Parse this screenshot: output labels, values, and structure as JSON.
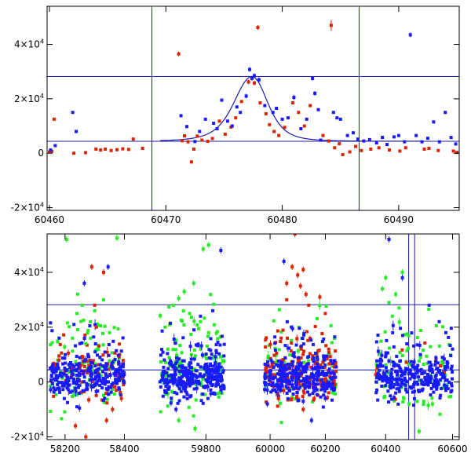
{
  "colors": {
    "blue": "#1a1aff",
    "red": "#dd2200",
    "green": "#22ee22",
    "line": "#1a1ab0",
    "frame": "#000000"
  },
  "chart_data": [
    {
      "type": "scatter",
      "title": "",
      "xlabel": "",
      "ylabel": "",
      "xlim": [
        60459.8,
        60495.2
      ],
      "ylim": [
        -21000,
        54000
      ],
      "x_ticks": [
        60460,
        60470,
        60480,
        60490
      ],
      "x_tick_labels": [
        "60460",
        "60470",
        "60480",
        "60490"
      ],
      "y_ticks": [
        -20000,
        0,
        20000,
        40000
      ],
      "y_tick_labels": [
        {
          "mant": "-2×10",
          "exp": "4"
        },
        {
          "mant": "0",
          "exp": ""
        },
        {
          "mant": "2×10",
          "exp": "4"
        },
        {
          "mant": "4×10",
          "exp": "4"
        }
      ],
      "hlines": [
        28200,
        4400
      ],
      "vlines": [
        60468.8,
        60486.6
      ],
      "model_curve": {
        "baseline": 4400,
        "peak": 28200,
        "t0": 60477.4,
        "tE_rise": 2.3,
        "tE_fall": 2.0
      },
      "series": [
        {
          "color": "red",
          "points": [
            [
              60460.0,
              500
            ],
            [
              60460.2,
              700
            ],
            [
              60460.4,
              12500
            ],
            [
              60462.1,
              0
            ],
            [
              60463.1,
              200
            ],
            [
              60464.0,
              1500
            ],
            [
              60464.4,
              1200
            ],
            [
              60464.8,
              1500
            ],
            [
              60465.3,
              1000
            ],
            [
              60465.8,
              1300
            ],
            [
              60466.3,
              1600
            ],
            [
              60466.8,
              1400
            ],
            [
              60467.2,
              5200
            ],
            [
              60468.0,
              1800
            ],
            [
              60471.1,
              36500
            ],
            [
              60471.4,
              4600
            ],
            [
              60471.6,
              6400
            ],
            [
              60471.9,
              4200
            ],
            [
              60472.2,
              -3200
            ],
            [
              60472.4,
              1500
            ],
            [
              60472.7,
              6300
            ],
            [
              60473.1,
              4800
            ],
            [
              60473.6,
              4400
            ],
            [
              60474.0,
              5400
            ],
            [
              60474.6,
              11800
            ],
            [
              60475.1,
              7000
            ],
            [
              60475.6,
              9600
            ],
            [
              60476.0,
              13000
            ],
            [
              60476.5,
              19000
            ],
            [
              60477.1,
              26200
            ],
            [
              60477.6,
              25800
            ],
            [
              60477.9,
              46200
            ],
            [
              60478.1,
              18500
            ],
            [
              60478.6,
              14500
            ],
            [
              60478.9,
              10500
            ],
            [
              60479.3,
              8000
            ],
            [
              60479.7,
              6500
            ],
            [
              60480.2,
              9500
            ],
            [
              60480.9,
              18500
            ],
            [
              60481.4,
              15000
            ],
            [
              60481.9,
              10000
            ],
            [
              60482.4,
              17500
            ],
            [
              60483.5,
              6500
            ],
            [
              60484.0,
              4500
            ],
            [
              60484.2,
              47000
            ],
            [
              60484.5,
              2000
            ],
            [
              60484.9,
              3500
            ],
            [
              60485.2,
              -500
            ],
            [
              60485.8,
              500
            ],
            [
              60486.3,
              2500
            ],
            [
              60486.8,
              1000
            ],
            [
              60487.6,
              1500
            ],
            [
              60488.3,
              2000
            ],
            [
              60489.2,
              1200
            ],
            [
              60490.1,
              800
            ],
            [
              60490.6,
              2000
            ],
            [
              60492.2,
              1500
            ],
            [
              60492.6,
              1800
            ],
            [
              60493.4,
              1000
            ],
            [
              60494.7,
              800
            ],
            [
              60495.0,
              300
            ]
          ]
        },
        {
          "color": "blue",
          "points": [
            [
              60460.1,
              1200
            ],
            [
              60460.5,
              2800
            ],
            [
              60462.0,
              15000
            ],
            [
              60462.3,
              8000
            ],
            [
              60471.3,
              13800
            ],
            [
              60471.8,
              9800
            ],
            [
              60472.5,
              4300
            ],
            [
              60472.9,
              8000
            ],
            [
              60473.4,
              12500
            ],
            [
              60474.1,
              11000
            ],
            [
              60474.4,
              9000
            ],
            [
              60474.8,
              19500
            ],
            [
              60475.3,
              11800
            ],
            [
              60475.7,
              10000
            ],
            [
              60476.1,
              17000
            ],
            [
              60476.4,
              15000
            ],
            [
              60476.9,
              21000
            ],
            [
              60477.2,
              30800
            ],
            [
              60477.4,
              27500
            ],
            [
              60477.6,
              28500
            ],
            [
              60478.0,
              27000
            ],
            [
              60478.5,
              17500
            ],
            [
              60479.2,
              15000
            ],
            [
              60479.5,
              16500
            ],
            [
              60480.0,
              12500
            ],
            [
              60480.5,
              13000
            ],
            [
              60481.0,
              20500
            ],
            [
              60481.6,
              9000
            ],
            [
              60482.1,
              12500
            ],
            [
              60482.6,
              27500
            ],
            [
              60482.8,
              22000
            ],
            [
              60483.1,
              16000
            ],
            [
              60483.3,
              4800
            ],
            [
              60484.4,
              15000
            ],
            [
              60484.7,
              13000
            ],
            [
              60485.0,
              12500
            ],
            [
              60485.6,
              6500
            ],
            [
              60486.1,
              7500
            ],
            [
              60486.5,
              5200
            ],
            [
              60487.0,
              4500
            ],
            [
              60487.5,
              5000
            ],
            [
              60488.1,
              3800
            ],
            [
              60488.6,
              5800
            ],
            [
              60489.0,
              3200
            ],
            [
              60489.6,
              6000
            ],
            [
              60490.0,
              6500
            ],
            [
              60490.5,
              4200
            ],
            [
              60491.0,
              43500
            ],
            [
              60491.5,
              6500
            ],
            [
              60492.0,
              4200
            ],
            [
              60492.5,
              5500
            ],
            [
              60493.0,
              11500
            ],
            [
              60493.5,
              4200
            ],
            [
              60494.0,
              15000
            ],
            [
              60494.5,
              5800
            ],
            [
              60494.9,
              3400
            ]
          ]
        }
      ]
    },
    {
      "type": "scatter",
      "title": "",
      "xlabel": "",
      "ylabel": "",
      "xlim": [
        58140,
        60620
      ],
      "ylim": [
        -21000,
        54000
      ],
      "x_ticks": [
        58200,
        58400,
        59800,
        60000,
        60200,
        60400,
        60600
      ],
      "x_tick_labels": [
        "58200",
        "58400",
        "59800",
        "60000",
        "60200",
        "60400",
        "60600"
      ],
      "y_ticks": [
        -20000,
        0,
        20000,
        40000
      ],
      "y_tick_labels": [
        {
          "mant": "-2×10",
          "exp": "4"
        },
        {
          "mant": "0",
          "exp": ""
        },
        {
          "mant": "2×10",
          "exp": "4"
        },
        {
          "mant": "4×10",
          "exp": "4"
        }
      ],
      "hlines": [
        28200,
        4400
      ],
      "vlines": [
        60468.8,
        60486.6
      ],
      "axis_breaks_x": [
        [
          58440,
          59610
        ],
        [
          59880,
          59970
        ],
        [
          60250,
          60350
        ]
      ],
      "seasons": [
        {
          "start": 58150,
          "end": 58400,
          "center": 58300
        },
        {
          "start": 59630,
          "end": 59870,
          "center": 59760
        },
        {
          "start": 59980,
          "end": 60240,
          "center": 60100
        },
        {
          "start": 60370,
          "end": 60600,
          "center": 60470
        }
      ],
      "dense_counts": [
        {
          "blue": 280,
          "red": 80,
          "green": 90
        },
        {
          "blue": 300,
          "red": 0,
          "green": 130
        },
        {
          "blue": 320,
          "red": 170,
          "green": 60
        },
        {
          "blue": 300,
          "red": 10,
          "green": 80
        }
      ],
      "series_sparse": [
        {
          "color": "green",
          "points": [
            [
              58205,
              52000
            ],
            [
              58375,
              52500
            ],
            [
              58258,
              28000
            ],
            [
              58240,
              25000
            ],
            [
              58330,
              30000
            ],
            [
              58300,
              26000
            ],
            [
              58285,
              22000
            ],
            [
              58320,
              20500
            ],
            [
              58350,
              18000
            ],
            [
              58225,
              16000
            ],
            [
              58270,
              14000
            ],
            [
              58310,
              12000
            ],
            [
              59790,
              48500
            ],
            [
              59810,
              50000
            ],
            [
              59755,
              36000
            ],
            [
              59720,
              33000
            ],
            [
              59700,
              30500
            ],
            [
              59680,
              28000
            ],
            [
              59740,
              25000
            ],
            [
              59780,
              22000
            ],
            [
              59810,
              18000
            ],
            [
              59650,
              20000
            ],
            [
              59700,
              -14000
            ],
            [
              59760,
              -17000
            ],
            [
              59850,
              -4000
            ],
            [
              60410,
              29000
            ],
            [
              60430,
              32000
            ],
            [
              60390,
              34000
            ],
            [
              60400,
              38000
            ],
            [
              60450,
              40000
            ],
            [
              60420,
              24000
            ],
            [
              60470,
              -8000
            ],
            [
              60500,
              -18000
            ],
            [
              60540,
              -8000
            ],
            [
              60440,
              27000
            ]
          ]
        },
        {
          "color": "red",
          "points": [
            [
              58290,
              42000
            ],
            [
              58330,
              40000
            ],
            [
              58300,
              28000
            ],
            [
              58305,
              20000
            ],
            [
              58235,
              -16000
            ],
            [
              58270,
              -20000
            ],
            [
              58340,
              -14000
            ],
            [
              58360,
              -10000
            ],
            [
              58390,
              -6000
            ],
            [
              58280,
              -6500
            ],
            [
              60080,
              42000
            ],
            [
              60100,
              39000
            ],
            [
              60120,
              41000
            ],
            [
              60060,
              36000
            ],
            [
              60110,
              35000
            ],
            [
              60130,
              32000
            ],
            [
              60060,
              30000
            ],
            [
              60180,
              31000
            ],
            [
              60200,
              25000
            ],
            [
              60140,
              28000
            ],
            [
              60090,
              54000
            ],
            [
              60030,
              -6000
            ],
            [
              60120,
              -10000
            ],
            [
              60160,
              -6000
            ],
            [
              60040,
              16000
            ]
          ]
        },
        {
          "color": "blue",
          "points": [
            [
              58345,
              42000
            ],
            [
              58265,
              36000
            ],
            [
              58230,
              21000
            ],
            [
              58180,
              16000
            ],
            [
              58250,
              14000
            ],
            [
              59855,
              48000
            ],
            [
              59690,
              -10000
            ],
            [
              59825,
              26000
            ],
            [
              59780,
              24000
            ],
            [
              59830,
              -4000
            ],
            [
              60050,
              44000
            ],
            [
              59990,
              -8000
            ],
            [
              60120,
              -7000
            ],
            [
              60150,
              -14000
            ],
            [
              60200,
              -6000
            ],
            [
              60410,
              52000
            ],
            [
              60450,
              38000
            ],
            [
              60530,
              28000
            ],
            [
              60560,
              22000
            ],
            [
              60580,
              18000
            ],
            [
              60600,
              12000
            ],
            [
              60430,
              -4000
            ]
          ]
        }
      ]
    }
  ]
}
